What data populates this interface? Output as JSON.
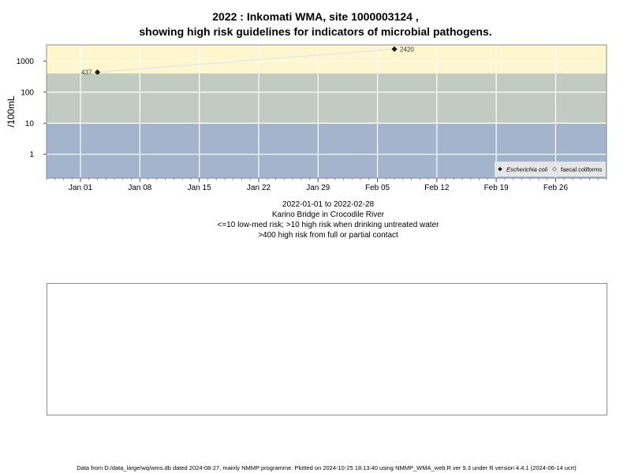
{
  "chart_data": {
    "type": "scatter",
    "title_lines": [
      "2022 : Inkomati WMA, site 1000003124 ,",
      "showing high risk guidelines for indicators of microbial pathogens."
    ],
    "ylabel": "/100mL",
    "y_scale": "log",
    "ylim": [
      0.17,
      3300
    ],
    "y_ticks": [
      1,
      10,
      100,
      1000
    ],
    "y_tick_labels": [
      "1",
      "10",
      "100",
      "1000"
    ],
    "xlim": [
      "2021-12-28",
      "2022-03-04"
    ],
    "x_ticks": [
      "2022-01-01",
      "2022-01-08",
      "2022-01-15",
      "2022-01-22",
      "2022-01-29",
      "2022-02-05",
      "2022-02-12",
      "2022-02-19",
      "2022-02-26"
    ],
    "x_tick_labels": [
      "Jan 01",
      "Jan 08",
      "Jan 15",
      "Jan 22",
      "Jan 29",
      "Feb 05",
      "Feb 12",
      "Feb 19",
      "Feb 26"
    ],
    "grid": true,
    "bands": [
      {
        "from": 0.17,
        "to": 10,
        "color": "#a3b4cc"
      },
      {
        "from": 10,
        "to": 400,
        "color": "#c1cbc1"
      },
      {
        "from": 400,
        "to": 3300,
        "color": "#fdf6cf"
      }
    ],
    "series": [
      {
        "name": "Escherichia coli",
        "marker": "filled-diamond",
        "color": "#1a1a1a",
        "points": [
          {
            "x": "2022-01-03",
            "y": 437,
            "label": "437"
          },
          {
            "x": "2022-02-07",
            "y": 2420,
            "label": "2420"
          }
        ]
      },
      {
        "name": "faecal coliforms",
        "marker": "open-diamond",
        "color": "#555555",
        "points": []
      }
    ],
    "legend_position": "bottom-right",
    "connecting_line_color": "#e8e8e8"
  },
  "info_lines": [
    "2022-01-01 to 2022-02-28",
    "Karino Bridge in Crocodile River",
    "<=10 low-med risk; >10 high risk when drinking untreated water",
    ">400 high risk from full or partial contact"
  ],
  "footer": "Data from D:/data_large/wq/wms.db dated 2024-08-27, mainly NMMP programme. Plotted on 2024-10-25 18:13:40 using NMMP_WMA_web.R ver 9.3 under R version 4.4.1 (2024-06-14 ucrt)"
}
